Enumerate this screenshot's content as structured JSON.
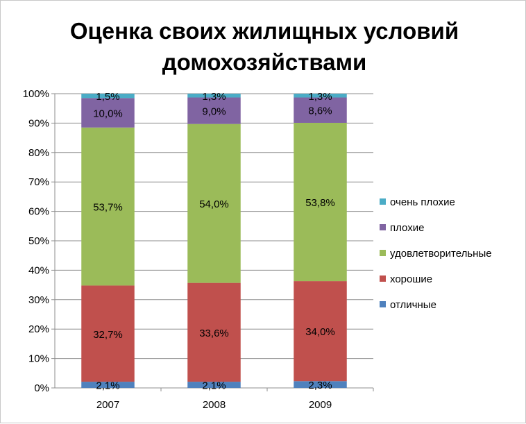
{
  "chart_data": {
    "type": "bar",
    "stacked": true,
    "title_lines": [
      "Оценка своих жилищных условий",
      "домохозяйствами"
    ],
    "xlabel": "",
    "ylabel": "",
    "categories": [
      "2007",
      "2008",
      "2009"
    ],
    "ylim": [
      0,
      100
    ],
    "y_ticks": [
      "0%",
      "10%",
      "20%",
      "30%",
      "40%",
      "50%",
      "60%",
      "70%",
      "80%",
      "90%",
      "100%"
    ],
    "grid": true,
    "legend_position": "right",
    "series": [
      {
        "name": "отличные",
        "color": "#4f81bd",
        "values": [
          2.1,
          2.1,
          2.3
        ],
        "labels": [
          "2,1%",
          "2,1%",
          "2,3%"
        ]
      },
      {
        "name": "хорошие",
        "color": "#c0504d",
        "values": [
          32.7,
          33.6,
          34.0
        ],
        "labels": [
          "32,7%",
          "33,6%",
          "34,0%"
        ]
      },
      {
        "name": "удовлетворительные",
        "color": "#9bbb59",
        "values": [
          53.7,
          54.0,
          53.8
        ],
        "labels": [
          "53,7%",
          "54,0%",
          "53,8%"
        ]
      },
      {
        "name": "плохие",
        "color": "#8064a2",
        "values": [
          10.0,
          9.0,
          8.6
        ],
        "labels": [
          "10,0%",
          "9,0%",
          "8,6%"
        ]
      },
      {
        "name": "очень плохие",
        "color": "#4bacc6",
        "values": [
          1.5,
          1.3,
          1.3
        ],
        "labels": [
          "1,5%",
          "1,3%",
          "1,3%"
        ]
      }
    ]
  }
}
